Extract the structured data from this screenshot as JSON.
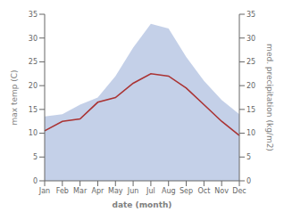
{
  "chart_data": {
    "type": "line",
    "xlabel": "date (month)",
    "ylabel": "max temp (C)",
    "y2label": "med. precipitation (kg/m2)",
    "categories": [
      "Jan",
      "Feb",
      "Mar",
      "Apr",
      "May",
      "Jun",
      "Jul",
      "Aug",
      "Sep",
      "Oct",
      "Nov",
      "Dec"
    ],
    "ylim": [
      0,
      35
    ],
    "yticks": [
      0,
      5,
      10,
      15,
      20,
      25,
      30,
      35
    ],
    "y2lim": [
      0,
      35
    ],
    "y2ticks": [
      0,
      5,
      10,
      15,
      20,
      25,
      30,
      35
    ],
    "series": [
      {
        "type": "area",
        "color": "#b0c0e0",
        "axis": "y2",
        "values": [
          13.5,
          14.0,
          16.0,
          17.5,
          22.0,
          28.0,
          33.0,
          32.0,
          26.0,
          21.0,
          17.0,
          14.0
        ]
      },
      {
        "type": "line",
        "color": "#aa3333",
        "axis": "y2",
        "values": [
          10.5,
          12.5,
          13.0,
          16.5,
          17.5,
          20.5,
          22.5,
          22.0,
          19.5,
          16.0,
          12.5,
          9.5
        ]
      }
    ]
  }
}
